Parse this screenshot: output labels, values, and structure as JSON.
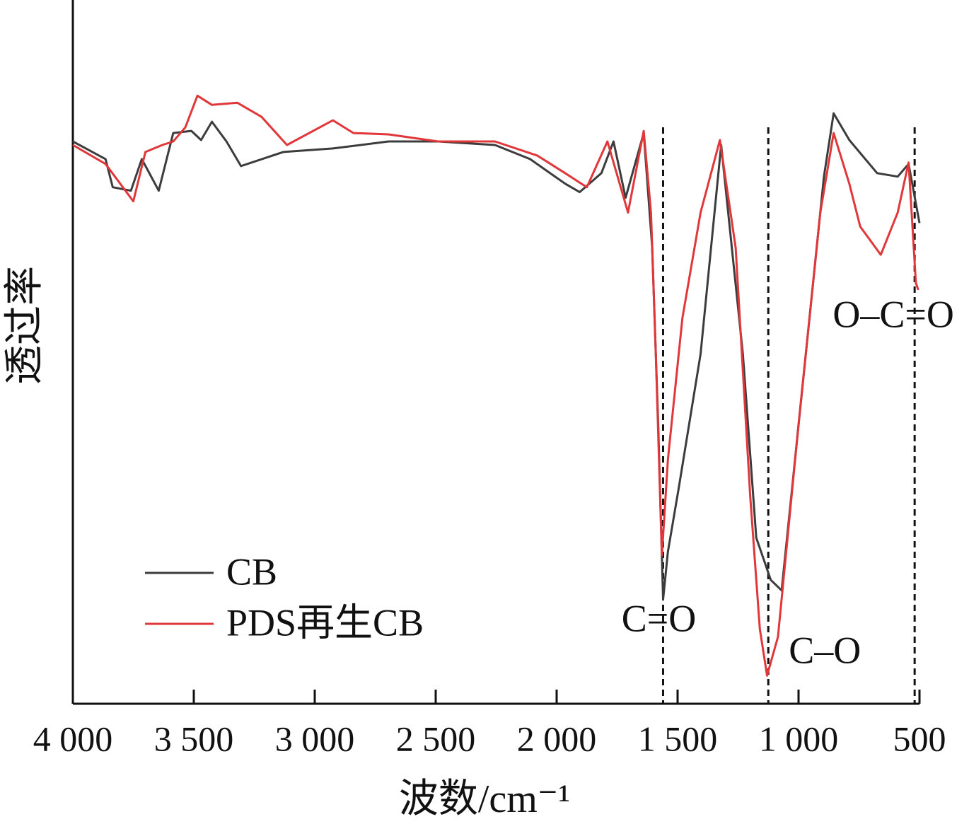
{
  "chart_data": {
    "type": "line",
    "xlabel": "波数/cm⁻¹",
    "ylabel": "透过率",
    "xlim": [
      4000,
      500
    ],
    "ylim": [
      0,
      100
    ],
    "xticks": [
      {
        "value": 4000,
        "label": "4 000"
      },
      {
        "value": 3500,
        "label": "3 500"
      },
      {
        "value": 3000,
        "label": "3 000"
      },
      {
        "value": 2500,
        "label": "2 500"
      },
      {
        "value": 2000,
        "label": "2 000"
      },
      {
        "value": 1500,
        "label": "1 500"
      },
      {
        "value": 1000,
        "label": "1 000"
      },
      500
    ],
    "series": [
      {
        "name": "CB",
        "color": "#3c3c3c",
        "x": [
          4000,
          3865,
          3835,
          3760,
          3715,
          3645,
          3585,
          3510,
          3470,
          3425,
          3365,
          3305,
          3130,
          2925,
          2695,
          2490,
          2255,
          2110,
          1965,
          1905,
          1815,
          1765,
          1715,
          1640,
          1605,
          1580,
          1560,
          1540,
          1495,
          1405,
          1320,
          1230,
          1175,
          1115,
          1070,
          970,
          895,
          855,
          790,
          675,
          590,
          545,
          500
        ],
        "values": [
          79.9,
          77.4,
          73.4,
          72.9,
          77.4,
          72.9,
          81.1,
          81.4,
          80.1,
          82.7,
          79.9,
          76.4,
          78.4,
          78.9,
          79.9,
          79.9,
          79.4,
          77.4,
          73.9,
          72.7,
          75.4,
          79.9,
          71.9,
          81.1,
          64.8,
          39.7,
          14.8,
          21.6,
          30.7,
          49.7,
          79.4,
          49.7,
          23.6,
          17.6,
          16.1,
          49.7,
          74.9,
          83.9,
          80.1,
          75.4,
          74.9,
          76.7,
          68.3
        ]
      },
      {
        "name": "PDS再生CB",
        "color": "#e0373a",
        "x": [
          4000,
          3865,
          3750,
          3700,
          3630,
          3585,
          3535,
          3485,
          3425,
          3320,
          3220,
          3115,
          2925,
          2840,
          2695,
          2490,
          2255,
          2080,
          1965,
          1875,
          1790,
          1705,
          1640,
          1610,
          1590,
          1565,
          1540,
          1480,
          1405,
          1325,
          1260,
          1200,
          1160,
          1130,
          1085,
          1000,
          910,
          855,
          790,
          745,
          660,
          590,
          545,
          515,
          505
        ],
        "values": [
          79.4,
          76.7,
          71.4,
          78.4,
          79.4,
          79.9,
          81.9,
          86.4,
          85.1,
          85.4,
          83.4,
          79.4,
          82.9,
          81.1,
          80.9,
          79.9,
          79.9,
          77.9,
          75.4,
          73.4,
          79.9,
          69.8,
          81.4,
          69.8,
          49.7,
          21.1,
          34.7,
          54.8,
          69.8,
          80.1,
          64.8,
          29.6,
          10.6,
          4.0,
          9.5,
          39.7,
          69.8,
          81.1,
          73.9,
          67.8,
          63.8,
          69.8,
          76.9,
          59.8,
          58.8
        ]
      }
    ],
    "annotations": [
      {
        "text": "C=O",
        "x": 1560
      },
      {
        "text": "C–O",
        "x": 1125
      },
      {
        "text": "O–C=O",
        "x": 520
      }
    ]
  }
}
